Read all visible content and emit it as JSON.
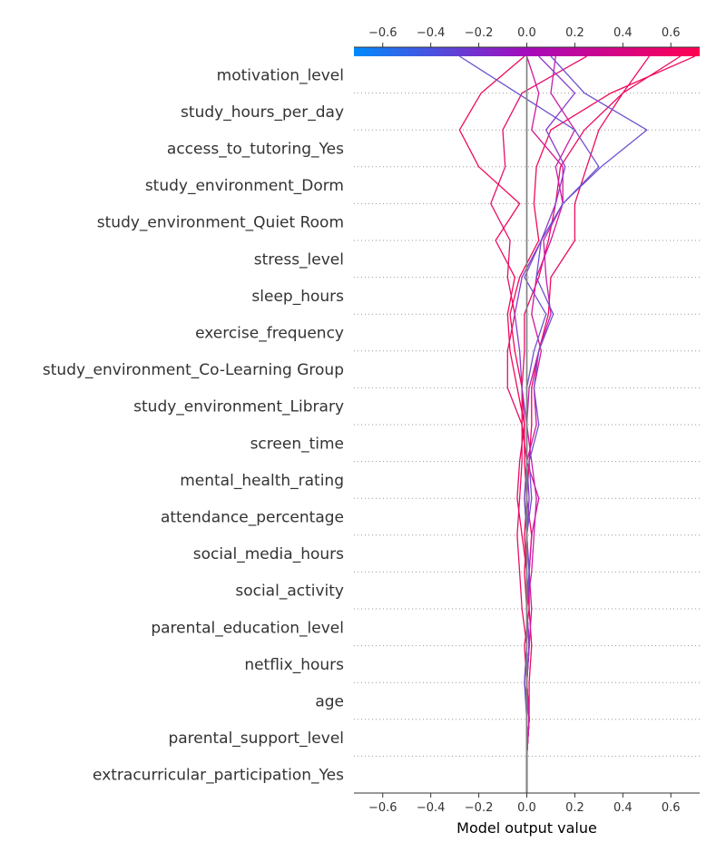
{
  "chart_data": {
    "type": "line",
    "subtype": "shap-decision-plot",
    "xlabel": "Model output value",
    "xlim": [
      -0.72,
      0.72
    ],
    "x_ticks": [
      -0.6,
      -0.4,
      -0.2,
      0.0,
      0.2,
      0.4,
      0.6
    ],
    "x_tick_labels": [
      "−0.6",
      "−0.4",
      "−0.2",
      "0.0",
      "0.2",
      "0.4",
      "0.6"
    ],
    "base_value": 0.0,
    "colorbar": {
      "position": "top",
      "low_color": "#008bfb",
      "mid_color": "#a50bbb",
      "high_color": "#ff0052"
    },
    "grid": "dotted horizontal",
    "features": [
      "motivation_level",
      "study_hours_per_day",
      "access_to_tutoring_Yes",
      "study_environment_Dorm",
      "study_environment_Quiet Room",
      "stress_level",
      "sleep_hours",
      "exercise_frequency",
      "study_environment_Co-Learning Group",
      "study_environment_Library",
      "screen_time",
      "mental_health_rating",
      "attendance_percentage",
      "social_media_hours",
      "social_activity",
      "parental_education_level",
      "netflix_hours",
      "age",
      "parental_support_level",
      "extracurricular_participation_Yes"
    ],
    "series": [
      {
        "color": "#e6106a",
        "values": [
          0.0,
          0.0,
          0.01,
          -0.01,
          0.0,
          -0.02,
          -0.03,
          -0.04,
          -0.03,
          -0.02,
          -0.02,
          -0.08,
          -0.08,
          -0.05,
          -0.08,
          -0.07,
          -0.15,
          -0.09,
          -0.1,
          -0.02,
          0.25
        ]
      },
      {
        "color": "#e80c66",
        "values": [
          0.0,
          0.0,
          0.01,
          0.0,
          -0.01,
          0.01,
          0.0,
          -0.02,
          -0.04,
          -0.03,
          -0.01,
          -0.02,
          -0.01,
          -0.01,
          0.05,
          0.09,
          0.12,
          0.14,
          0.24,
          0.4,
          0.51
        ]
      },
      {
        "color": "#ee0a5e",
        "values": [
          0.0,
          0.0,
          0.01,
          0.0,
          0.01,
          0.0,
          0.0,
          -0.01,
          0.0,
          -0.01,
          -0.01,
          -0.04,
          -0.07,
          -0.08,
          -0.05,
          -0.13,
          -0.03,
          -0.2,
          -0.28,
          -0.19,
          -0.01
        ]
      },
      {
        "color": "#f20858",
        "values": [
          0.0,
          0.0,
          0.01,
          0.0,
          0.01,
          0.0,
          -0.01,
          0.0,
          -0.01,
          0.0,
          -0.02,
          -0.02,
          -0.05,
          -0.07,
          -0.03,
          0.05,
          0.03,
          0.04,
          0.1,
          0.35,
          0.7
        ]
      },
      {
        "color": "#ec0b60",
        "values": [
          0.0,
          0.0,
          0.01,
          0.01,
          0.02,
          0.01,
          0.01,
          0.02,
          0.0,
          0.01,
          0.02,
          0.02,
          0.05,
          0.09,
          0.1,
          0.2,
          0.2,
          0.25,
          0.3,
          0.4,
          0.64
        ]
      },
      {
        "color": "#d4169a",
        "values": [
          0.0,
          0.0,
          0.01,
          0.0,
          0.01,
          0.02,
          0.01,
          0.02,
          0.05,
          0.0,
          0.04,
          0.03,
          0.06,
          0.02,
          0.04,
          0.1,
          0.15,
          0.15,
          0.02,
          0.05,
          0.0
        ]
      },
      {
        "color": "#c81ea8",
        "values": [
          0.0,
          0.0,
          0.01,
          0.0,
          0.01,
          0.0,
          0.02,
          0.03,
          0.04,
          0.02,
          0.0,
          0.01,
          0.05,
          0.1,
          0.08,
          0.07,
          0.15,
          0.12,
          0.2,
          0.1,
          0.12
        ]
      },
      {
        "color": "#7050d0",
        "values": [
          0.0,
          0.0,
          0.0,
          0.0,
          0.01,
          0.0,
          0.01,
          0.0,
          0.02,
          0.01,
          0.05,
          0.03,
          0.05,
          0.11,
          0.04,
          0.06,
          0.15,
          0.31,
          0.5,
          0.24,
          0.1
        ]
      },
      {
        "color": "#6e52cf",
        "values": [
          0.0,
          0.0,
          0.0,
          -0.01,
          0.0,
          0.0,
          0.01,
          0.0,
          -0.01,
          0.0,
          0.0,
          0.0,
          0.03,
          0.08,
          -0.01,
          0.06,
          0.15,
          0.3,
          0.2,
          -0.04,
          -0.28
        ]
      },
      {
        "color": "#8a3cc8",
        "values": [
          0.0,
          0.0,
          0.0,
          0.0,
          0.01,
          0.0,
          0.0,
          0.0,
          0.01,
          0.0,
          0.0,
          -0.02,
          -0.03,
          -0.05,
          -0.02,
          0.06,
          0.12,
          0.16,
          0.08,
          0.2,
          0.05
        ]
      },
      {
        "color": "#7a7a7a",
        "values": [
          0.0,
          0.0,
          0.0,
          0.0,
          0.0,
          0.0,
          0.0,
          0.0,
          0.0,
          0.0,
          0.0,
          0.0,
          0.0,
          0.0,
          0.0,
          0.0,
          0.0,
          0.0,
          0.0,
          0.0,
          0.0
        ]
      }
    ]
  }
}
